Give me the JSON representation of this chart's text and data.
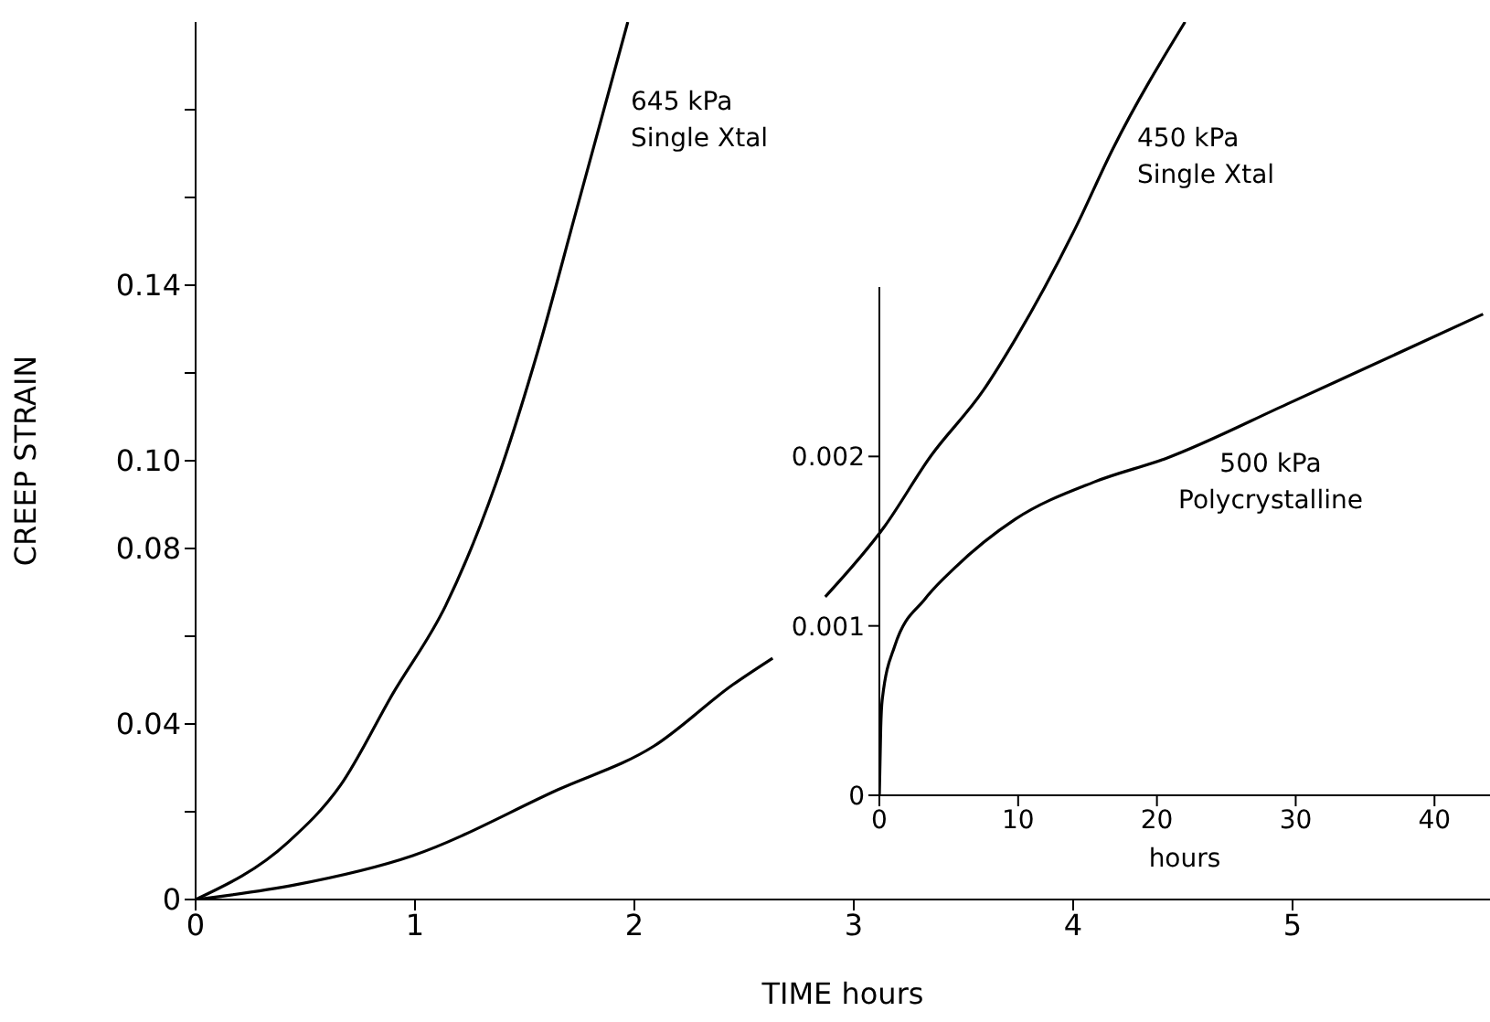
{
  "chart_data": [
    {
      "type": "line",
      "xlabel": "TIME hours",
      "ylabel": "CREEP STRAIN",
      "xlim": [
        0,
        5.9
      ],
      "ylim": [
        0,
        0.2
      ],
      "xticks": [
        0,
        1,
        2,
        3,
        4,
        5
      ],
      "yticks": [
        0,
        {
          "value": 0.02,
          "label": null
        },
        0.04,
        {
          "value": 0.06,
          "label": null
        },
        0.08,
        {
          "value": 0.1,
          "label": "0.10"
        },
        {
          "value": 0.12,
          "label": null
        },
        0.14,
        {
          "value": 0.16,
          "label": null
        },
        {
          "value": 0.18,
          "label": null
        }
      ],
      "series": [
        {
          "name": "645 kPa\nSingle Xtal",
          "color": "#000000",
          "x": [
            0,
            0.42,
            0.66,
            0.9,
            1.14,
            1.37,
            1.56,
            1.73,
            1.97
          ],
          "values": [
            0,
            0.013,
            0.026,
            0.047,
            0.067,
            0.095,
            0.125,
            0.156,
            0.2
          ]
        },
        {
          "name": "450 kPa\nSingle Xtal",
          "color": "#000000",
          "x": [
            0,
            0.45,
            0.99,
            1.65,
            2.09,
            2.45,
            2.63,
            2.75,
            2.87,
            3.14,
            3.35,
            3.59,
            3.74,
            4.01,
            4.18,
            4.51
          ],
          "values": [
            0,
            0.0033,
            0.01,
            0.025,
            0.035,
            0.049,
            0.055,
            null,
            0.069,
            0.085,
            0.101,
            0.116,
            0.128,
            0.153,
            0.171,
            0.2
          ]
        }
      ]
    },
    {
      "type": "line",
      "xlabel": "hours",
      "xlim": [
        0,
        44
      ],
      "ylim": [
        0,
        0.003
      ],
      "xticks": [
        0,
        10,
        20,
        30,
        40
      ],
      "yticks": [
        0,
        0.001,
        0.002
      ],
      "series": [
        {
          "name": "500 kPa\nPolycrystalline",
          "color": "#000000",
          "x": [
            0,
            0.1,
            0.2,
            1.1,
            3.3,
            5.4,
            9.8,
            15.5,
            20.7,
            29.4,
            34.2,
            43.5
          ],
          "values": [
            0,
            0.0004,
            0.00056,
            0.00088,
            0.00116,
            0.00134,
            0.00163,
            0.00185,
            0.00199,
            0.00231,
            0.00249,
            0.00284
          ]
        }
      ]
    }
  ]
}
